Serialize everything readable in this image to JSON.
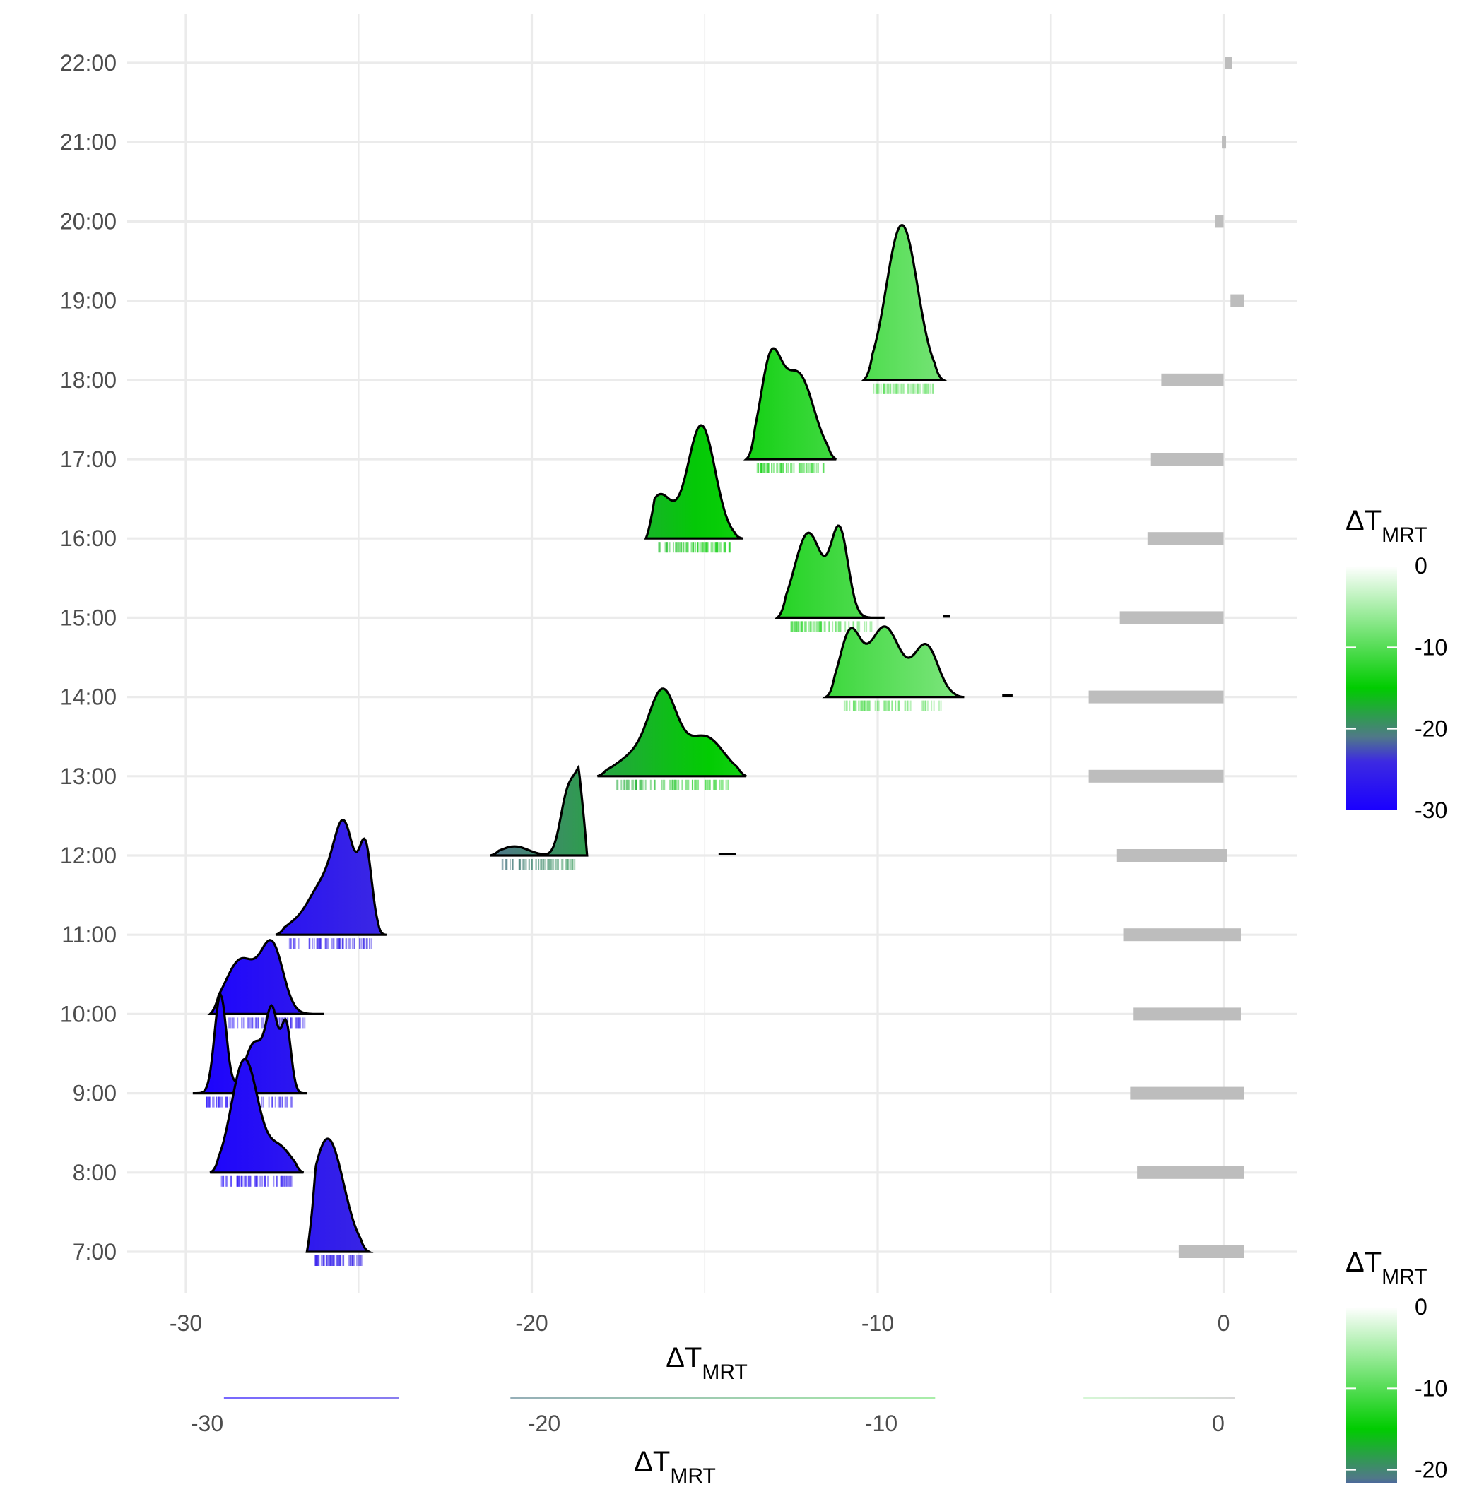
{
  "chart_data": {
    "type": "ridgeline",
    "xlabel": "ΔT",
    "xlabel_sub": "MRT",
    "xlim": [
      -32,
      2
    ],
    "xticks": [
      -30,
      -20,
      -10,
      0
    ],
    "xtick_labels": [
      "-30",
      "-20",
      "-10",
      "0"
    ],
    "categories": [
      "7:00",
      "8:00",
      "9:00",
      "10:00",
      "11:00",
      "12:00",
      "13:00",
      "14:00",
      "15:00",
      "16:00",
      "17:00",
      "18:00",
      "19:00",
      "20:00",
      "21:00",
      "22:00"
    ],
    "grid": true,
    "colors": {
      "low": "#1a00ff",
      "mid": "#00cc00",
      "high": "#ffffff",
      "reference_rug": "#bdbdbd"
    },
    "ridges": [
      {
        "hour": "7:00",
        "range": [
          -26.5,
          -24.7
        ],
        "peaks": [
          [
            -25.9,
            0.46,
            1.0
          ]
        ],
        "mean": -25.8
      },
      {
        "hour": "8:00",
        "range": [
          -29.3,
          -26.6
        ],
        "peaks": [
          [
            -28.3,
            0.38,
            1.0
          ],
          [
            -27.3,
            0.35,
            0.22
          ]
        ],
        "mean": -28.0
      },
      {
        "hour": "9:00",
        "range": [
          -29.8,
          -26.5
        ],
        "peaks": [
          [
            -29.0,
            0.17,
            0.87
          ],
          [
            -28.0,
            0.3,
            0.45
          ],
          [
            -27.5,
            0.17,
            0.65
          ],
          [
            -27.1,
            0.14,
            0.6
          ]
        ],
        "mean": -28.2
      },
      {
        "hour": "10:00",
        "range": [
          -29.3,
          -26.0
        ],
        "peaks": [
          [
            -28.4,
            0.45,
            0.48
          ],
          [
            -27.5,
            0.32,
            0.58
          ]
        ],
        "mean": -27.8
      },
      {
        "hour": "11:00",
        "range": [
          -27.4,
          -24.2
        ],
        "peaks": [
          [
            -27.0,
            0.25,
            0.04
          ],
          [
            -26.0,
            0.5,
            0.45
          ],
          [
            -25.4,
            0.3,
            0.78
          ],
          [
            -24.8,
            0.18,
            0.7
          ]
        ],
        "mean": -25.6
      },
      {
        "hour": "12:00",
        "range": [
          -21.2,
          -18.4
        ],
        "peaks": [
          [
            -20.5,
            0.4,
            0.08
          ],
          [
            -19.0,
            0.2,
            0.38
          ],
          [
            -18.5,
            0.3,
            0.78
          ],
          [
            -18.1,
            0.2,
            0.55
          ]
        ],
        "mean": -18.9,
        "outlier": [
          -14.6,
          -14.1
        ]
      },
      {
        "hour": "13:00",
        "range": [
          -18.1,
          -13.8
        ],
        "peaks": [
          [
            -17.0,
            0.55,
            0.18
          ],
          [
            -16.2,
            0.4,
            0.68
          ],
          [
            -15.0,
            0.55,
            0.35
          ]
        ],
        "mean": -15.9
      },
      {
        "hour": "14:00",
        "range": [
          -11.5,
          -7.5
        ],
        "peaks": [
          [
            -10.8,
            0.3,
            0.55
          ],
          [
            -9.8,
            0.45,
            0.62
          ],
          [
            -8.6,
            0.35,
            0.45
          ]
        ],
        "mean": -9.7,
        "outlier": [
          -6.4,
          -6.1
        ]
      },
      {
        "hour": "15:00",
        "range": [
          -12.9,
          -9.8
        ],
        "peaks": [
          [
            -12.0,
            0.4,
            0.75
          ],
          [
            -11.1,
            0.25,
            0.75
          ]
        ],
        "mean": -11.6,
        "outlier": [
          -8.1,
          -7.9
        ]
      },
      {
        "hour": "16:00",
        "range": [
          -16.7,
          -13.9
        ],
        "peaks": [
          [
            -16.3,
            0.35,
            0.38
          ],
          [
            -15.1,
            0.4,
            1.0
          ]
        ],
        "mean": -15.2
      },
      {
        "hour": "17:00",
        "range": [
          -13.8,
          -11.2
        ],
        "peaks": [
          [
            -13.1,
            0.3,
            0.8
          ],
          [
            -12.3,
            0.45,
            0.75
          ]
        ],
        "mean": -12.7
      },
      {
        "hour": "18:00",
        "range": [
          -10.4,
          -8.1
        ],
        "peaks": [
          [
            -9.3,
            0.45,
            1.37
          ]
        ],
        "mean": -9.3
      }
    ],
    "reference_rugs": [
      {
        "hour": "7:00",
        "range": [
          -1.3,
          0.6
        ]
      },
      {
        "hour": "8:00",
        "range": [
          -2.5,
          0.6
        ]
      },
      {
        "hour": "9:00",
        "range": [
          -2.7,
          0.6
        ]
      },
      {
        "hour": "10:00",
        "range": [
          -2.6,
          0.5
        ]
      },
      {
        "hour": "11:00",
        "range": [
          -2.9,
          0.5
        ]
      },
      {
        "hour": "12:00",
        "range": [
          -3.1,
          0.1
        ]
      },
      {
        "hour": "13:00",
        "range": [
          -3.9,
          0.0
        ]
      },
      {
        "hour": "14:00",
        "range": [
          -3.9,
          0.0
        ]
      },
      {
        "hour": "15:00",
        "range": [
          -3.0,
          0.0
        ]
      },
      {
        "hour": "16:00",
        "range": [
          -2.2,
          0.0
        ]
      },
      {
        "hour": "17:00",
        "range": [
          -2.1,
          0.0
        ]
      },
      {
        "hour": "18:00",
        "range": [
          -1.8,
          0.0
        ]
      },
      {
        "hour": "19:00",
        "range": [
          0.2,
          0.6
        ]
      },
      {
        "hour": "20:00",
        "range": [
          -0.25,
          0.0
        ]
      },
      {
        "hour": "21:00",
        "range": [
          -0.05,
          0.05
        ]
      },
      {
        "hour": "22:00",
        "range": [
          0.05,
          0.25
        ]
      }
    ],
    "legend": {
      "title": "ΔT",
      "title_sub": "MRT",
      "range": [
        -30,
        0
      ],
      "labels": [
        "0",
        "-10",
        "-20",
        "-30"
      ],
      "label_values": [
        0,
        -10,
        -20,
        -30
      ],
      "placement": "right"
    },
    "inset": {
      "xlabel": "ΔT",
      "xlabel_sub": "MRT",
      "xlim": [
        -31,
        2
      ],
      "xtick_labels": [
        "-30",
        "-20",
        "-10",
        "0"
      ],
      "xticks": [
        -30,
        -20,
        -10,
        0
      ],
      "legend_title": "ΔT",
      "legend_title_sub": "MRT",
      "legend_labels": [
        "0",
        "-10",
        "-20"
      ],
      "legend_label_values": [
        0,
        -10,
        -20
      ]
    }
  }
}
